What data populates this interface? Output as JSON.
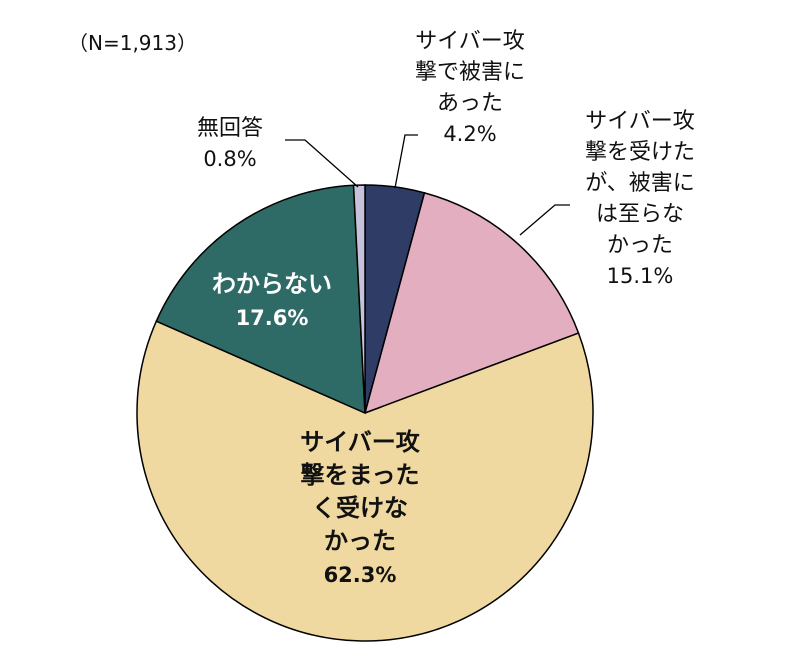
{
  "chart_data": {
    "type": "pie",
    "note": "（N=1,913）",
    "slices": [
      {
        "label_lines": [
          "サイバー攻",
          "撃で被害に",
          "あった"
        ],
        "value": 4.2,
        "value_label": "4.2%",
        "color": "#2e3c66"
      },
      {
        "label_lines": [
          "サイバー攻",
          "撃を受けた",
          "が、被害に",
          "は至らな",
          "かった"
        ],
        "value": 15.1,
        "value_label": "15.1%",
        "color": "#e3aec0"
      },
      {
        "label_lines": [
          "サイバー攻",
          "撃をまった",
          "く受けな",
          "かった"
        ],
        "value": 62.3,
        "value_label": "62.3%",
        "color": "#f0d9a0"
      },
      {
        "label_lines": [
          "わからない"
        ],
        "value": 17.6,
        "value_label": "17.6%",
        "color": "#2e6b66"
      },
      {
        "label_lines": [
          "無回答"
        ],
        "value": 0.8,
        "value_label": "0.8%",
        "color": "#c6c2dc"
      }
    ]
  }
}
